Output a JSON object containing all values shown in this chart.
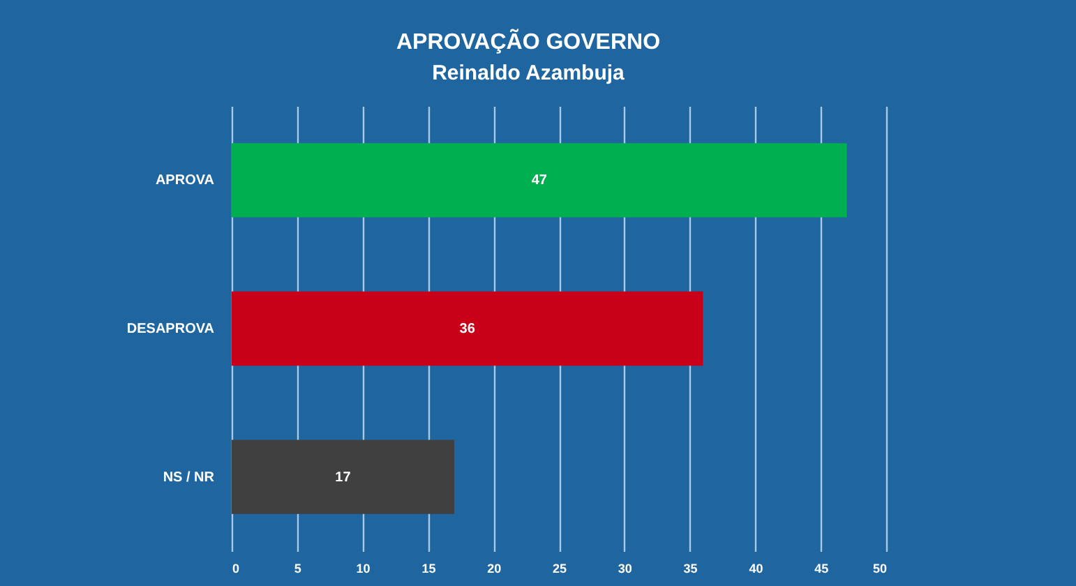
{
  "chart_data": {
    "type": "bar",
    "title": "APROVAÇÃO GOVERNO",
    "subtitle": "Reinaldo Azambuja",
    "orientation": "horizontal",
    "categories": [
      "APROVA",
      "DESAPROVA",
      "NS / NR"
    ],
    "values": [
      47,
      36,
      17
    ],
    "colors": [
      "#00b050",
      "#c80018",
      "#404040"
    ],
    "xlim": [
      0,
      50
    ],
    "xticks": [
      0,
      5,
      10,
      15,
      20,
      25,
      30,
      35,
      40,
      45,
      50
    ],
    "grid": "x",
    "data_labels": true
  }
}
